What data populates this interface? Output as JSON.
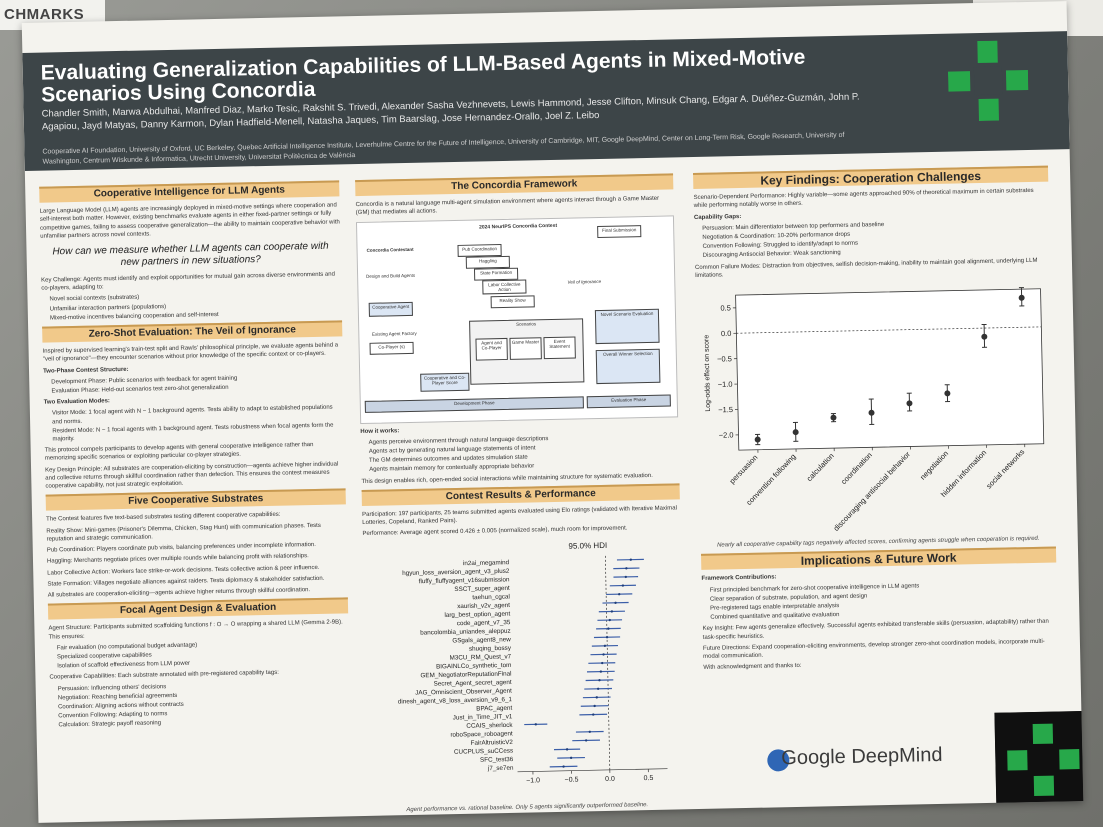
{
  "corner_sign": "CHMARKS",
  "poster": {
    "title": "Evaluating Generalization Capabilities of LLM-Based Agents in Mixed-Motive Scenarios Using Concordia",
    "authors": "Chandler Smith, Marwa Abdulhai, Manfred Diaz, Marko Tesic, Rakshit S. Trivedi, Alexander Sasha Vezhnevets, Lewis Hammond, Jesse Clifton, Minsuk Chang, Edgar A. Duéñez-Guzmán, John P. Agapiou, Jayd Matyas, Danny Karmon, Dylan Hadfield-Menell, Natasha Jaques, Tim Baarslag, Jose Hernandez-Orallo, Joel Z. Leibo",
    "affiliations": "Cooperative AI Foundation, University of Oxford, UC Berkeley, Quebec Artificial Intelligence Institute, Leverhulme Centre for the Future of Intelligence, University of Cambridge, MIT, Google DeepMind, Center on Long-Term Risk, Google Research, University of Washington, Centrum Wiskunde & Informatica, Utrecht University, Universitat Politècnica de València",
    "col1": {
      "h1": "Cooperative Intelligence for LLM Agents",
      "p1": "Large Language Model (LLM) agents are increasingly deployed in mixed-motive settings where cooperation and self-interest both matter. However, existing benchmarks evaluate agents in either fixed-partner settings or fully competitive games, failing to assess cooperative generalization—the ability to maintain cooperative behavior with unfamiliar partners across novel contexts.",
      "quote": "How can we measure whether LLM agents can cooperate with new partners in new situations?",
      "p2": "Key Challenge: Agents must identify and exploit opportunities for mutual gain across diverse environments and co-players, adapting to:",
      "b1": "Novel social contexts (substrates)",
      "b2": "Unfamiliar interaction partners (populations)",
      "b3": "Mixed-motive incentives balancing cooperation and self-interest",
      "h2": "Zero-Shot Evaluation: The Veil of Ignorance",
      "p3": "Inspired by supervised learning's train-test split and Rawls' philosophical principle, we evaluate agents behind a \"veil of ignorance\"—they encounter scenarios without prior knowledge of the specific context or co-players.",
      "p4": "Two-Phase Contest Structure:",
      "b4": "Development Phase: Public scenarios with feedback for agent training",
      "b5": "Evaluation Phase: Held-out scenarios test zero-shot generalization",
      "p5": "Two Evaluation Modes:",
      "b6": "Visitor Mode: 1 focal agent with N − 1 background agents. Tests ability to adapt to established populations and norms.",
      "b7": "Resident Mode: N − 1 focal agents with 1 background agent. Tests robustness when focal agents form the majority.",
      "p6": "This protocol compels participants to develop agents with general cooperative intelligence rather than memorizing specific scenarios or exploiting particular co-player strategies.",
      "p7": "Key Design Principle: All substrates are cooperation-eliciting by construction—agents achieve higher individual and collective returns through skillful coordination rather than defection. This ensures the contest measures cooperative capability, not just strategic exploitation.",
      "h3": "Five Cooperative Substrates",
      "p8": "The Contest features five text-based substrates testing different cooperative capabilities:",
      "s1": "Reality Show: Mini-games (Prisoner's Dilemma, Chicken, Stag Hunt) with communication phases. Tests reputation and strategic communication.",
      "s2": "Pub Coordination: Players coordinate pub visits, balancing preferences under incomplete information.",
      "s3": "Haggling: Merchants negotiate prices over multiple rounds while balancing profit with relationships.",
      "s4": "Labor Collective Action: Workers face strike-or-work decisions. Tests collective action & peer influence.",
      "s5": "State Formation: Villages negotiate alliances against raiders. Tests diplomacy & stakeholder satisfaction.",
      "p9": "All substrates are cooperation-eliciting—agents achieve higher returns through skillful coordination.",
      "h4": "Focal Agent Design & Evaluation",
      "p10": "Agent Structure: Participants submitted scaffolding functions f : O → O wrapping a shared LLM (Gemma 2-9B). This ensures:",
      "b8": "Fair evaluation (no computational budget advantage)",
      "b9": "Specialized cooperative capabilities",
      "b10": "Isolation of scaffold effectiveness from LLM power",
      "p11": "Cooperative Capabilities: Each substrate annotated with pre-registered capability tags:",
      "b11": "Persuasion: Influencing others' decisions",
      "b12": "Negotiation: Reaching beneficial agreements",
      "b13": "Coordination: Aligning actions without contracts",
      "b14": "Convention Following: Adapting to norms",
      "b15": "Calculation: Strategic payoff reasoning"
    },
    "col2": {
      "h1": "The Concordia Framework",
      "p1": "Concordia is a natural language multi-agent simulation environment where agents interact through a Game Master (GM) that mediates all actions.",
      "diagram_title": "2024 NeurIPS Concordia Contest",
      "diagram_labels": [
        "Concordia Contestant",
        "Design and Build Agents",
        "Cooperative Agent",
        "Existing Agent Factory",
        "Co-Player (s)",
        "Cooperative and Co-Player Score",
        "Scenarios",
        "Agent and Co-Player",
        "Game Master",
        "Event Statement",
        "Novel Scenario Evaluation",
        "Overall Winner Selection",
        "Development Phase",
        "Evaluation Phase",
        "Pub Coordination",
        "Haggling",
        "State Formation",
        "Labor Collective Action",
        "Reality Show",
        "Veil of Ignorance",
        "Final Submission"
      ],
      "how": "How it works:",
      "w1": "Agents perceive environment through natural language descriptions",
      "w2": "Agents act by generating natural language statements of intent",
      "w3": "The GM determines outcomes and updates simulation state",
      "w4": "Agents maintain memory for contextually appropriate behavior",
      "p2": "This design enables rich, open-ended social interactions while maintaining structure for systematic evaluation.",
      "h2": "Contest Results & Performance",
      "p3": "Participation: 197 participants, 25 teams submitted agents evaluated using Elo ratings (validated with Iterative Maximal Lotteries, Copeland, Ranked Pairs).",
      "p4": "Performance: Average agent scored 0.426 ± 0.005 (normalized scale), much room for improvement.",
      "forest_title": "95.0% HDI",
      "caption": "Agent performance vs. rational baseline. Only 5 agents significantly outperformed baseline."
    },
    "col3": {
      "h1": "Key Findings: Cooperation Challenges",
      "p1": "Scenario-Dependent Performance: Highly variable—some agents approached 90% of theoretical maximum in certain substrates while performing notably worse in others.",
      "p2": "Capability Gaps:",
      "b1": "Persuasion: Main differentiator between top performers and baseline",
      "b2": "Negotiation & Coordination: 10-20% performance drops",
      "b3": "Convention Following: Struggled to identify/adapt to norms",
      "b4": "Discouraging Antisocial Behavior: Weak sanctioning",
      "p3": "Common Failure Modes: Distraction from objectives, selfish decision-making, inability to maintain goal alignment, underlying LLM limitations.",
      "ylabel": "Log-odds effect on score",
      "caption": "Nearly all cooperative capability tags negatively affected scores, confirming agents struggle when cooperation is required.",
      "h2": "Implications & Future Work",
      "p4": "Framework Contributions:",
      "b5": "First principled benchmark for zero-shot cooperative intelligence in LLM agents",
      "b6": "Clear separation of substrate, population, and agent design",
      "b7": "Pre-registered tags enable interpretable analysis",
      "b8": "Combined quantitative and qualitative evaluation",
      "p5": "Key Insight: Few agents generalize effectively. Successful agents exhibited transferable skills (persuasion, adaptability) rather than task-specific heuristics.",
      "p6": "Future Directions: Expand cooperation-eliciting environments, develop stronger zero-shot coordination models, incorporate multi-modal communication.",
      "p7": "With acknowledgment and thanks to:",
      "gdm": "Google DeepMind"
    }
  },
  "chart_data": [
    {
      "type": "scatter",
      "title": "95.0% HDI",
      "xlabel": "",
      "ylabel": "",
      "xlim": [
        -1.2,
        0.75
      ],
      "xticks": [
        "−1.0",
        "−0.5",
        "0.0",
        "0.5"
      ],
      "categories": [
        "in2ai_megamind",
        "hgyun_loss_aversion_agent_v3_plus2",
        "fluffy_fluffyagent_v16submission",
        "SSCT_super_agent",
        "taehun_cgcal",
        "xaurish_v2v_agent",
        "larg_best_option_agent",
        "code_agent_v7_35",
        "bancolombia_uniandes_aleppuz",
        "GSgals_agent8_new",
        "shuqing_bossy",
        "M3CU_RM_Quest_v7",
        "BIGAINLCo_synthetic_tom",
        "GEM_NegotiatorReputationFinal",
        "Secret_Agent_secret_agent",
        "JAG_Omniscient_Observer_Agent",
        "dinesh_agent_v8_loss_aversion_v9_6_1",
        "BPAC_agent",
        "Just_in_Time_JIT_v1",
        "CCAIS_sherlock",
        "roboSpace_roboagent",
        "FairAltruisticV2",
        "CUCPLUS_suCCess",
        "SFC_test36",
        "j7_se7en"
      ],
      "values": [
        0.33,
        0.27,
        0.26,
        0.22,
        0.17,
        0.12,
        0.07,
        0.04,
        0.02,
        0.0,
        -0.03,
        -0.05,
        -0.07,
        -0.09,
        -0.11,
        -0.13,
        -0.15,
        -0.18,
        -0.2,
        -0.95,
        -0.25,
        -0.3,
        -0.55,
        -0.5,
        -0.6
      ],
      "hdi_low": [
        0.15,
        0.1,
        0.1,
        0.05,
        0.0,
        -0.05,
        -0.1,
        -0.12,
        -0.14,
        -0.17,
        -0.2,
        -0.22,
        -0.25,
        -0.27,
        -0.29,
        -0.31,
        -0.33,
        -0.36,
        -0.38,
        -1.1,
        -0.43,
        -0.48,
        -0.72,
        -0.68,
        -0.78
      ],
      "hdi_high": [
        0.5,
        0.44,
        0.42,
        0.39,
        0.34,
        0.29,
        0.24,
        0.2,
        0.18,
        0.17,
        0.14,
        0.12,
        0.1,
        0.09,
        0.07,
        0.05,
        0.03,
        0.0,
        -0.02,
        -0.8,
        -0.07,
        -0.12,
        -0.38,
        -0.32,
        -0.42
      ]
    },
    {
      "type": "scatter",
      "title": "",
      "xlabel": "",
      "ylabel": "Log-odds effect on score",
      "ylim": [
        -2.3,
        0.75
      ],
      "yticks": [
        "0.5",
        "0.0",
        "−0.5",
        "−1.0",
        "−1.5",
        "−2.0"
      ],
      "categories": [
        "persuasion",
        "convention following",
        "calculation",
        "coordination",
        "discouraging antisocial behavior",
        "negotiation",
        "hidden information",
        "social networks"
      ],
      "values": [
        -2.1,
        -1.97,
        -1.7,
        -1.62,
        -1.45,
        -1.27,
        -0.17,
        0.58
      ],
      "err_low": [
        -2.2,
        -2.15,
        -1.78,
        -1.85,
        -1.6,
        -1.43,
        -0.38,
        0.42
      ],
      "err_high": [
        -2.0,
        -1.78,
        -1.62,
        -1.35,
        -1.25,
        -1.1,
        0.07,
        0.78
      ]
    }
  ]
}
